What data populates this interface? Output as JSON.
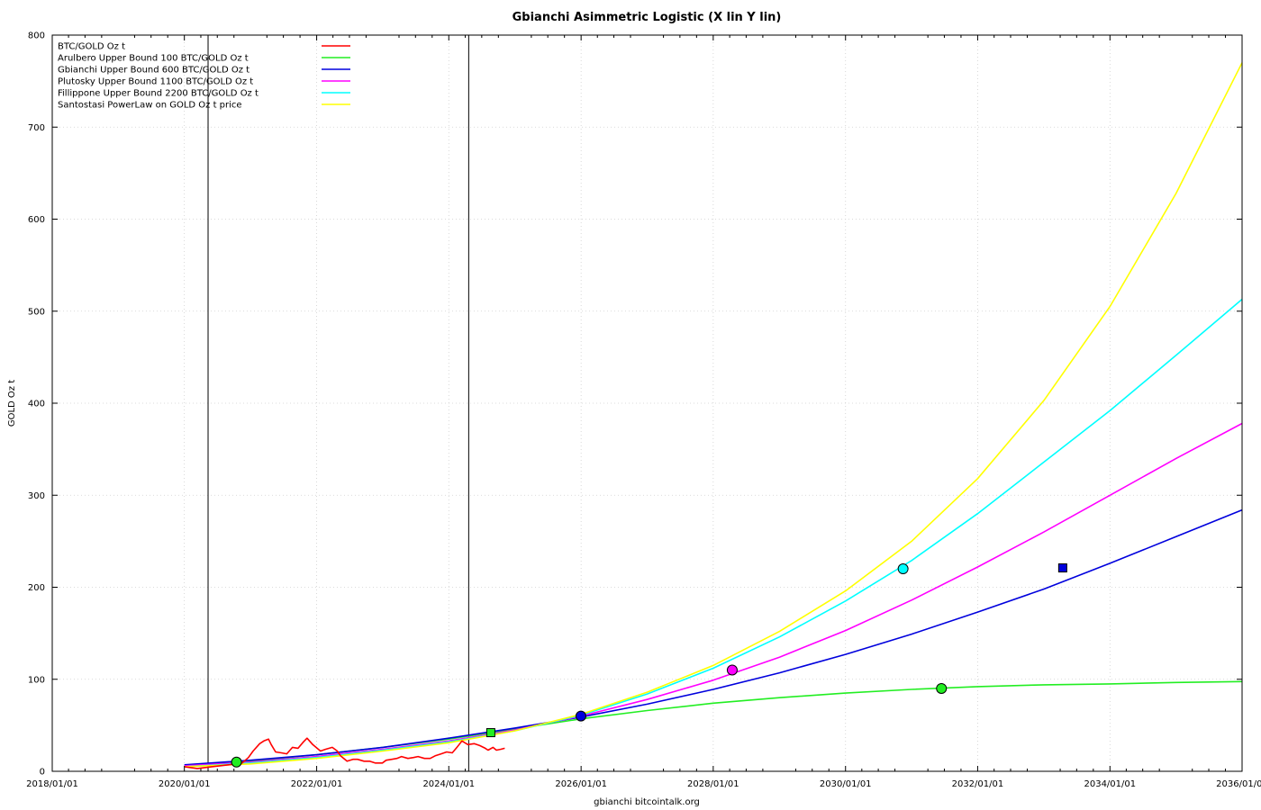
{
  "chart_data": {
    "type": "line",
    "title": "Gbianchi Asimmetric Logistic (X lin Y lin)",
    "xlabel": "gbianchi bitcointalk.org",
    "ylabel": "GOLD Oz t",
    "xlim": [
      "2018-01-01",
      "2036-01-01"
    ],
    "ylim": [
      0,
      800
    ],
    "x_ticks": [
      "2018/01/01",
      "2020/01/01",
      "2022/01/01",
      "2024/01/01",
      "2026/01/01",
      "2028/01/01",
      "2030/01/01",
      "2032/01/01",
      "2034/01/01",
      "2036/01/01"
    ],
    "y_ticks": [
      "0",
      "100",
      "200",
      "300",
      "400",
      "500",
      "600",
      "700",
      "800"
    ],
    "grid": true,
    "legend_position": "top-left",
    "vertical_lines": [
      "2020-05-11",
      "2024-04-20"
    ],
    "series": [
      {
        "name": "BTC/GOLD Oz t",
        "color": "#ff0000",
        "points": [
          [
            "2020-01-01",
            5
          ],
          [
            "2020-03-12",
            3
          ],
          [
            "2020-06-01",
            5
          ],
          [
            "2020-09-01",
            7
          ],
          [
            "2020-11-15",
            9
          ],
          [
            "2020-12-20",
            15
          ],
          [
            "2021-01-15",
            22
          ],
          [
            "2021-02-20",
            30
          ],
          [
            "2021-03-15",
            33
          ],
          [
            "2021-04-10",
            35
          ],
          [
            "2021-04-25",
            29
          ],
          [
            "2021-05-19",
            21
          ],
          [
            "2021-06-20",
            20
          ],
          [
            "2021-07-20",
            19
          ],
          [
            "2021-08-20",
            26
          ],
          [
            "2021-09-20",
            25
          ],
          [
            "2021-10-20",
            32
          ],
          [
            "2021-11-09",
            36
          ],
          [
            "2021-12-10",
            29
          ],
          [
            "2022-01-22",
            22
          ],
          [
            "2022-02-20",
            24
          ],
          [
            "2022-03-28",
            26
          ],
          [
            "2022-04-25",
            22
          ],
          [
            "2022-05-12",
            17
          ],
          [
            "2022-06-18",
            11
          ],
          [
            "2022-07-20",
            13
          ],
          [
            "2022-08-15",
            13
          ],
          [
            "2022-09-20",
            11
          ],
          [
            "2022-10-20",
            11
          ],
          [
            "2022-11-20",
            9
          ],
          [
            "2022-12-30",
            9
          ],
          [
            "2023-01-20",
            12
          ],
          [
            "2023-02-20",
            13
          ],
          [
            "2023-03-20",
            14
          ],
          [
            "2023-04-15",
            16
          ],
          [
            "2023-05-20",
            14
          ],
          [
            "2023-06-20",
            15
          ],
          [
            "2023-07-15",
            16
          ],
          [
            "2023-08-20",
            14
          ],
          [
            "2023-09-20",
            14
          ],
          [
            "2023-10-20",
            17
          ],
          [
            "2023-11-20",
            19
          ],
          [
            "2023-12-20",
            21
          ],
          [
            "2024-01-20",
            20
          ],
          [
            "2024-02-15",
            26
          ],
          [
            "2024-03-14",
            33
          ],
          [
            "2024-04-15",
            29
          ],
          [
            "2024-05-20",
            30
          ],
          [
            "2024-06-20",
            28
          ],
          [
            "2024-07-20",
            25
          ],
          [
            "2024-08-05",
            23
          ],
          [
            "2024-09-01",
            26
          ],
          [
            "2024-09-20",
            23
          ],
          [
            "2024-10-15",
            24
          ],
          [
            "2024-11-05",
            25
          ]
        ]
      },
      {
        "name": "Arulbero Upper Bound 100  BTC/GOLD Oz t",
        "color": "#22ee22",
        "points": [
          [
            "2020-01-01",
            6
          ],
          [
            "2021-01-01",
            11
          ],
          [
            "2022-01-01",
            18
          ],
          [
            "2023-01-01",
            26
          ],
          [
            "2024-01-01",
            35
          ],
          [
            "2025-01-01",
            46
          ],
          [
            "2026-01-01",
            57
          ],
          [
            "2027-01-01",
            66
          ],
          [
            "2028-01-01",
            74
          ],
          [
            "2029-01-01",
            80
          ],
          [
            "2030-01-01",
            85
          ],
          [
            "2031-01-01",
            89
          ],
          [
            "2032-01-01",
            92
          ],
          [
            "2033-01-01",
            94
          ],
          [
            "2034-01-01",
            95
          ],
          [
            "2035-01-01",
            96.5
          ],
          [
            "2036-01-01",
            97.5
          ]
        ]
      },
      {
        "name": "Gbianchi Upper Bound 600  BTC/GOLD Oz t",
        "color": "#0000dd",
        "points": [
          [
            "2020-01-01",
            7
          ],
          [
            "2021-01-01",
            12
          ],
          [
            "2022-01-01",
            18
          ],
          [
            "2023-01-01",
            26
          ],
          [
            "2024-01-01",
            36
          ],
          [
            "2025-01-01",
            47
          ],
          [
            "2026-01-01",
            59
          ],
          [
            "2027-01-01",
            73
          ],
          [
            "2028-01-01",
            89
          ],
          [
            "2029-01-01",
            107
          ],
          [
            "2030-01-01",
            127
          ],
          [
            "2031-01-01",
            149
          ],
          [
            "2032-01-01",
            173
          ],
          [
            "2033-01-01",
            198
          ],
          [
            "2034-01-01",
            226
          ],
          [
            "2035-01-01",
            255
          ],
          [
            "2036-01-01",
            284
          ]
        ]
      },
      {
        "name": "Plutosky Upper Bound 1100  BTC/GOLD Oz t",
        "color": "#ff00ff",
        "points": [
          [
            "2020-01-01",
            6
          ],
          [
            "2021-01-01",
            10
          ],
          [
            "2022-01-01",
            16
          ],
          [
            "2023-01-01",
            24
          ],
          [
            "2024-01-01",
            33
          ],
          [
            "2025-01-01",
            45
          ],
          [
            "2026-01-01",
            60
          ],
          [
            "2027-01-01",
            78
          ],
          [
            "2028-01-01",
            99
          ],
          [
            "2029-01-01",
            124
          ],
          [
            "2030-01-01",
            153
          ],
          [
            "2031-01-01",
            186
          ],
          [
            "2032-01-01",
            222
          ],
          [
            "2033-01-01",
            260
          ],
          [
            "2034-01-01",
            300
          ],
          [
            "2035-01-01",
            340
          ],
          [
            "2036-01-01",
            378
          ]
        ]
      },
      {
        "name": "Fillippone Upper Bound 2200  BTC/GOLD Oz t",
        "color": "#00ffff",
        "points": [
          [
            "2020-01-01",
            5
          ],
          [
            "2021-01-01",
            9
          ],
          [
            "2022-01-01",
            15
          ],
          [
            "2023-01-01",
            23
          ],
          [
            "2024-01-01",
            32
          ],
          [
            "2025-01-01",
            44
          ],
          [
            "2026-01-01",
            61
          ],
          [
            "2027-01-01",
            84
          ],
          [
            "2028-01-01",
            112
          ],
          [
            "2029-01-01",
            146
          ],
          [
            "2030-01-01",
            185
          ],
          [
            "2031-01-01",
            229
          ],
          [
            "2032-01-01",
            280
          ],
          [
            "2033-01-01",
            336
          ],
          [
            "2034-01-01",
            392
          ],
          [
            "2035-01-01",
            452
          ],
          [
            "2036-01-01",
            513
          ]
        ]
      },
      {
        "name": "Santostasi PowerLaw on GOLD Oz t price",
        "color": "#ffff00",
        "points": [
          [
            "2020-01-01",
            5
          ],
          [
            "2021-01-01",
            8
          ],
          [
            "2022-01-01",
            14
          ],
          [
            "2023-01-01",
            22
          ],
          [
            "2024-01-01",
            31
          ],
          [
            "2025-01-01",
            44
          ],
          [
            "2026-01-01",
            62
          ],
          [
            "2027-01-01",
            86
          ],
          [
            "2028-01-01",
            115
          ],
          [
            "2029-01-01",
            152
          ],
          [
            "2030-01-01",
            196
          ],
          [
            "2031-01-01",
            250
          ],
          [
            "2032-01-01",
            318
          ],
          [
            "2033-01-01",
            403
          ],
          [
            "2034-01-01",
            505
          ],
          [
            "2035-01-01",
            628
          ],
          [
            "2036-01-01",
            770
          ]
        ]
      }
    ],
    "markers": [
      {
        "date": "2020-10-15",
        "value": 10,
        "shape": "circle",
        "color": "#22ee22"
      },
      {
        "date": "2024-08-20",
        "value": 42,
        "shape": "square",
        "color": "#22ee22"
      },
      {
        "date": "2025-12-31",
        "value": 60,
        "shape": "circle",
        "color": "#0000dd"
      },
      {
        "date": "2028-04-15",
        "value": 110,
        "shape": "circle",
        "color": "#ff00ff"
      },
      {
        "date": "2030-11-15",
        "value": 220,
        "shape": "circle",
        "color": "#00ffff"
      },
      {
        "date": "2031-06-15",
        "value": 90,
        "shape": "circle",
        "color": "#22ee22"
      },
      {
        "date": "2033-04-15",
        "value": 221,
        "shape": "square",
        "color": "#0000dd"
      }
    ]
  }
}
